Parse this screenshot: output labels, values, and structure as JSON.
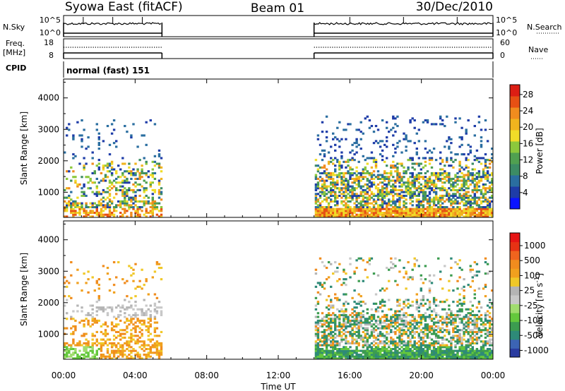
{
  "header": {
    "left_title": "Syowa East (fitACF)",
    "center_title": "Beam 01",
    "right_title": "30/Dec/2010"
  },
  "status_panels": {
    "nsky_label": "N.Sky",
    "nsky_ticks": [
      "10^5",
      "10^0"
    ],
    "nsearch_label": "N.Search",
    "nsearch_ticks": [
      "10^5",
      "10^0"
    ],
    "freq_label_1": "Freq.",
    "freq_label_2": "[MHz]",
    "freq_ticks": [
      "18",
      "8"
    ],
    "nave_label": "Nave",
    "nave_ticks": [
      "60",
      "0"
    ],
    "cpid_label": "CPID",
    "cpid_value": "normal (fast) 151"
  },
  "chart_data": [
    {
      "type": "heatmap",
      "name": "power",
      "ylabel": "Slant Range [km]",
      "yticks": [
        "1000",
        "2000",
        "3000",
        "4000"
      ],
      "ylim": [
        200,
        4600
      ],
      "colorbar_label": "Power [dB]",
      "colorbar_ticks": [
        "4",
        "8",
        "12",
        "16",
        "20",
        "24",
        "28"
      ],
      "colors": [
        "#0a14ff",
        "#1e3ca8",
        "#2a6ea0",
        "#3c8c64",
        "#50a050",
        "#8cc83c",
        "#f0dc28",
        "#f0b41e",
        "#f08c1e",
        "#e65014",
        "#dc1e14"
      ],
      "data_intervals_ut": [
        [
          0.0,
          5.5
        ],
        [
          14.0,
          24.0
        ]
      ]
    },
    {
      "type": "heatmap",
      "name": "velocity",
      "ylabel": "Slant Range [km]",
      "yticks": [
        "1000",
        "2000",
        "3000",
        "4000"
      ],
      "ylim": [
        200,
        4600
      ],
      "colorbar_label": "Velocity",
      "colorbar_unit": "[m s",
      "colorbar_unit_sup": "-1",
      "colorbar_unit_end": "]",
      "colorbar_ticks": [
        "1000",
        "500",
        "100",
        "25",
        "-25",
        "-100",
        "-500",
        "-1000"
      ],
      "colors": [
        "#2a3ca0",
        "#3c64b4",
        "#2e8a78",
        "#3c9c50",
        "#64c83c",
        "#a0dc6e",
        "#c8c8c8",
        "#b4b4b4",
        "#f0c828",
        "#f0a01e",
        "#f08c1e",
        "#f0641e",
        "#e63214",
        "#e61414"
      ],
      "data_intervals_ut": [
        [
          0.0,
          5.5
        ],
        [
          14.0,
          24.0
        ]
      ]
    }
  ],
  "x_axis": {
    "label": "Time UT",
    "ticks": [
      "00:00",
      "04:00",
      "08:00",
      "12:00",
      "16:00",
      "20:00",
      "00:00"
    ],
    "range_hours": [
      0,
      24
    ]
  }
}
